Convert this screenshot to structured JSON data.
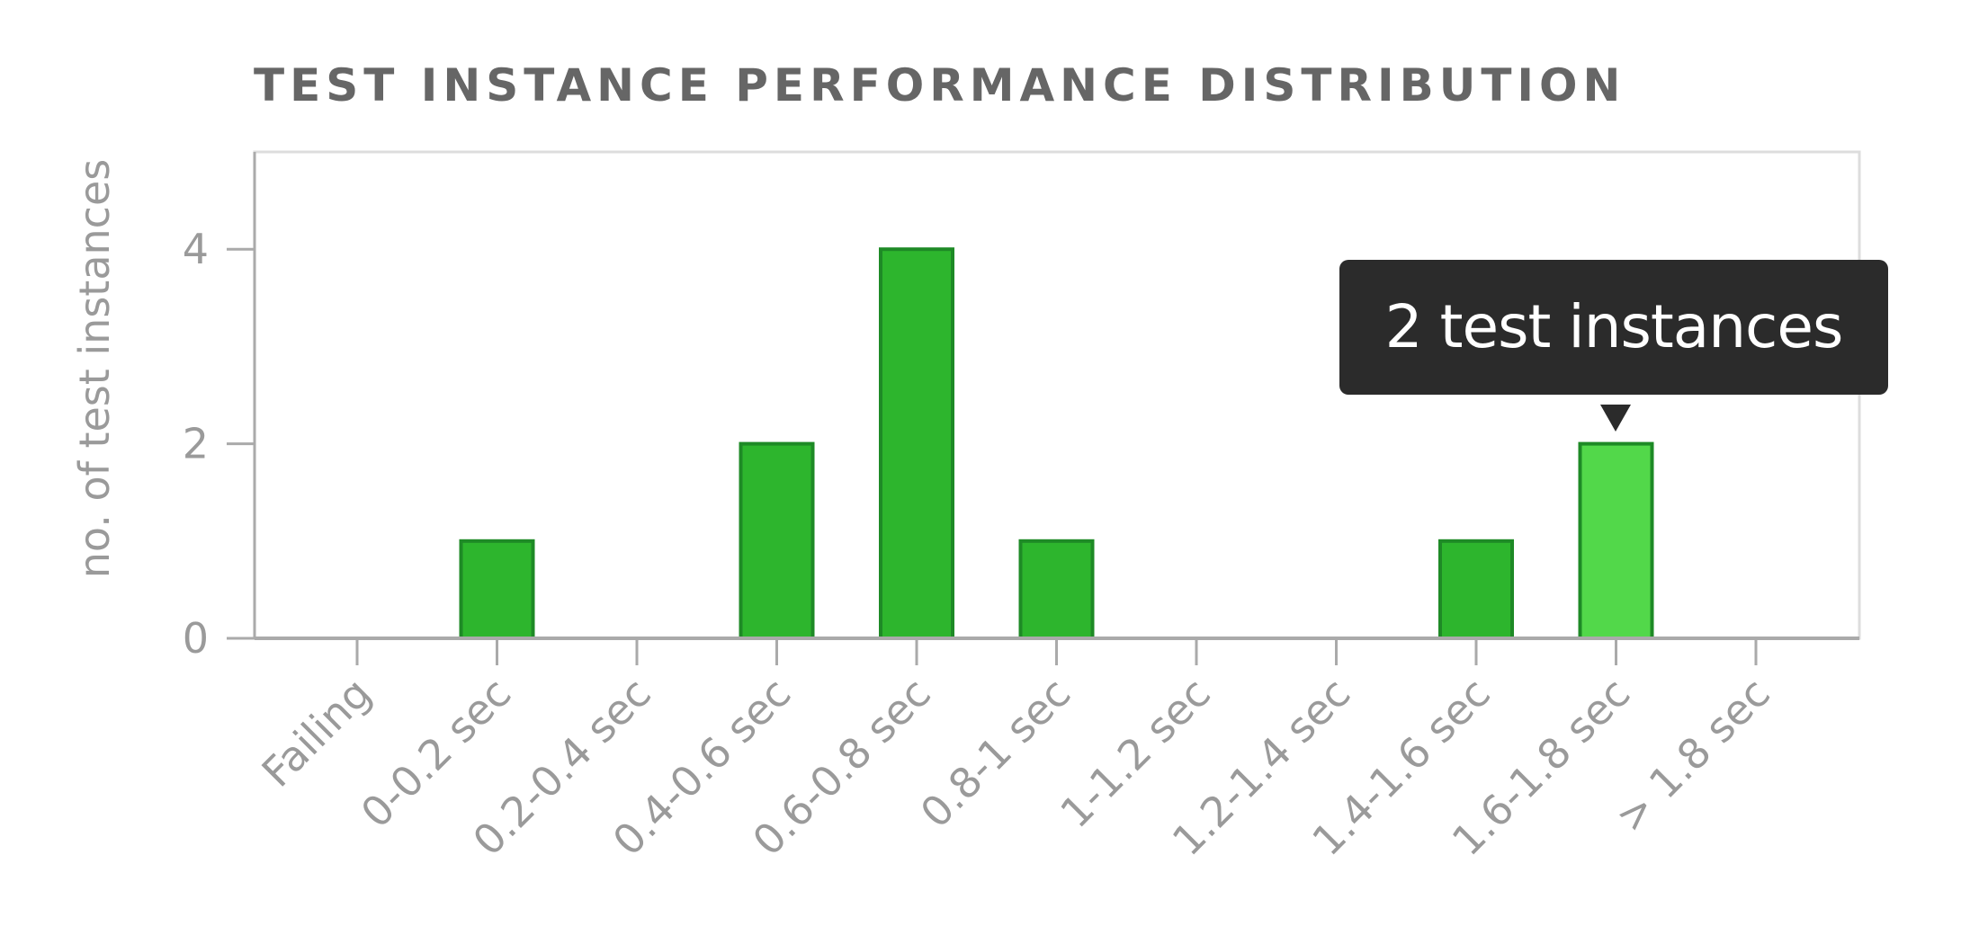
{
  "chart_data": {
    "type": "bar",
    "title": "TEST INSTANCE PERFORMANCE DISTRIBUTION",
    "ylabel": "no. of test instances",
    "xlabel": "",
    "categories": [
      "Failing",
      "0-0.2 sec",
      "0.2-0.4 sec",
      "0.4-0.6 sec",
      "0.6-0.8 sec",
      "0.8-1 sec",
      "1-1.2 sec",
      "1.2-1.4 sec",
      "1.4-1.6 sec",
      "1.6-1.8 sec",
      "> 1.8 sec"
    ],
    "values": [
      0,
      1,
      0,
      2,
      4,
      1,
      0,
      0,
      1,
      2,
      0
    ],
    "ylim": [
      0,
      5
    ],
    "yticks": [
      0,
      2,
      4
    ],
    "grid": false,
    "highlighted_index": 9,
    "tooltip": "2 test instances",
    "colors": {
      "bar_fill": "#2db52d",
      "bar_stroke": "#1e8a26",
      "highlight_fill": "#52d84a",
      "axis": "#aaaaaa",
      "plot_border": "#dddddd"
    }
  }
}
